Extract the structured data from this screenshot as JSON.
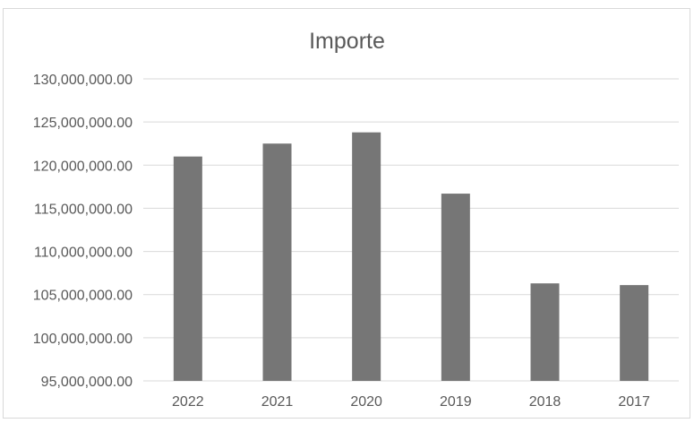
{
  "chart_data": {
    "type": "bar",
    "title": "Importe",
    "xlabel": "",
    "ylabel": "",
    "categories": [
      "2022",
      "2021",
      "2020",
      "2019",
      "2018",
      "2017"
    ],
    "values": [
      121000000,
      122500000,
      123800000,
      116700000,
      106300000,
      106100000
    ],
    "ylim": [
      95000000,
      130000000
    ],
    "yticks": [
      95000000,
      100000000,
      105000000,
      110000000,
      115000000,
      120000000,
      125000000,
      130000000
    ],
    "ytick_labels": [
      "95,000,000.00",
      "100,000,000.00",
      "105,000,000.00",
      "110,000,000.00",
      "115,000,000.00",
      "120,000,000.00",
      "125,000,000.00",
      "130,000,000.00"
    ],
    "grid": true,
    "legend": "none",
    "bar_color": "#767676",
    "grid_color": "#d9d9d9",
    "text_color": "#595959"
  }
}
